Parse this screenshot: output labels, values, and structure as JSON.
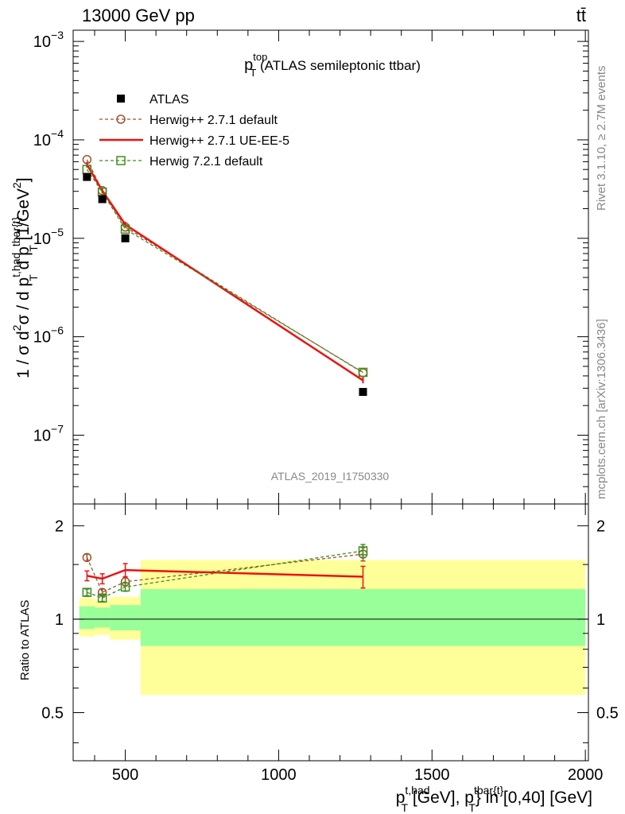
{
  "header": {
    "process": "13000 GeV pp",
    "corner": "tt̄"
  },
  "side": {
    "rivet": "Rivet 3.1.10, ≥ 2.7M events",
    "mcplots": "mcplots.cern.ch [arXiv:1306.3436]"
  },
  "chart_data": {
    "type": "scatter",
    "title": {
      "main": "p",
      "sup": "top",
      "sub": "T",
      "rest": " (ATLAS semileptonic ttbar)"
    },
    "analysis_label": "ATLAS_2019_I1750330",
    "main_ylabel": {
      "p1": "1 / σ d",
      "sup1": "2",
      "p2": "σ / d p",
      "sup2": "t,had",
      "sub2": "T",
      "p3": " d p",
      "sup3": "tbar{t}",
      "sub3": "T",
      "p4": " [1/GeV",
      "sup4": "2",
      "p5": "]"
    },
    "ratio_ylabel": "Ratio to ATLAS",
    "xlabel": {
      "p1": "p",
      "sup1": "t,had",
      "sub1": "T",
      "p2": " [GeV], p",
      "sup2": "tbar{t}",
      "sub2": "T",
      "p3": "} in [0,40] [GeV]"
    },
    "xlim": [
      330,
      2010
    ],
    "ylim_main": [
      2e-08,
      0.0013
    ],
    "ylim_ratio": [
      0.35,
      2.35
    ],
    "x_ticks": [
      {
        "v": 500,
        "label": "500"
      },
      {
        "v": 1000,
        "label": "1000"
      },
      {
        "v": 1500,
        "label": "1500"
      },
      {
        "v": 2000,
        "label": "2000"
      }
    ],
    "main_y_ticks": [
      {
        "v": 1e-07,
        "label": "10",
        "exp": "−7"
      },
      {
        "v": 1e-06,
        "label": "10",
        "exp": "−6"
      },
      {
        "v": 1e-05,
        "label": "10",
        "exp": "−5"
      },
      {
        "v": 0.0001,
        "label": "10",
        "exp": "−4"
      },
      {
        "v": 0.001,
        "label": "10",
        "exp": "−3"
      }
    ],
    "ratio_y_ticks": [
      {
        "v": 0.5,
        "label": "0.5"
      },
      {
        "v": 1,
        "label": "1"
      },
      {
        "v": 2,
        "label": "2"
      }
    ],
    "bins": [
      {
        "lo": 350,
        "hi": 400,
        "green_lo": 0.93,
        "green_hi": 1.1,
        "yellow_lo": 0.88,
        "yellow_hi": 1.17
      },
      {
        "lo": 400,
        "hi": 450,
        "green_lo": 0.94,
        "green_hi": 1.09,
        "yellow_lo": 0.89,
        "yellow_hi": 1.15
      },
      {
        "lo": 450,
        "hi": 550,
        "green_lo": 0.92,
        "green_hi": 1.11,
        "yellow_lo": 0.86,
        "yellow_hi": 1.18
      },
      {
        "lo": 550,
        "hi": 2000,
        "green_lo": 0.82,
        "green_hi": 1.25,
        "yellow_lo": 0.57,
        "yellow_hi": 1.55
      }
    ],
    "data": {
      "name": "ATLAS",
      "x": [
        375,
        425,
        500,
        1275
      ],
      "y": [
        4.2e-05,
        2.5e-05,
        1e-05,
        2.75e-07
      ]
    },
    "series": [
      {
        "name": "Herwig++ 2.7.1 default",
        "color": "#a0522d",
        "dash": "4,3",
        "marker": "circle",
        "x": [
          375,
          425,
          500,
          1275
        ],
        "y": [
          6.3e-05,
          3.05e-05,
          1.3e-05,
          4.3e-07
        ],
        "ratio": [
          1.58,
          1.22,
          1.32,
          1.62
        ],
        "ratio_err": [
          0.04,
          0.03,
          0.04,
          0.08
        ]
      },
      {
        "name": "Herwig++ 2.7.1 UE-EE-5",
        "color": "#ee1111",
        "dash": "",
        "marker": "none",
        "x": [
          375,
          425,
          500,
          1275
        ],
        "y": [
          5.6e-05,
          3.05e-05,
          1.38e-05,
          3.6e-07
        ],
        "ratio": [
          1.38,
          1.35,
          1.44,
          1.37
        ],
        "ratio_err": [
          0.05,
          0.05,
          0.07,
          0.11
        ]
      },
      {
        "name": "Herwig 7.2.1 default",
        "color": "#3d8f1a",
        "dash": "4,3",
        "marker": "square",
        "x": [
          375,
          425,
          500,
          1275
        ],
        "y": [
          5e-05,
          2.95e-05,
          1.24e-05,
          4.35e-07
        ],
        "ratio": [
          1.22,
          1.17,
          1.27,
          1.66
        ],
        "ratio_err": [
          0.03,
          0.03,
          0.04,
          0.08
        ]
      }
    ]
  }
}
